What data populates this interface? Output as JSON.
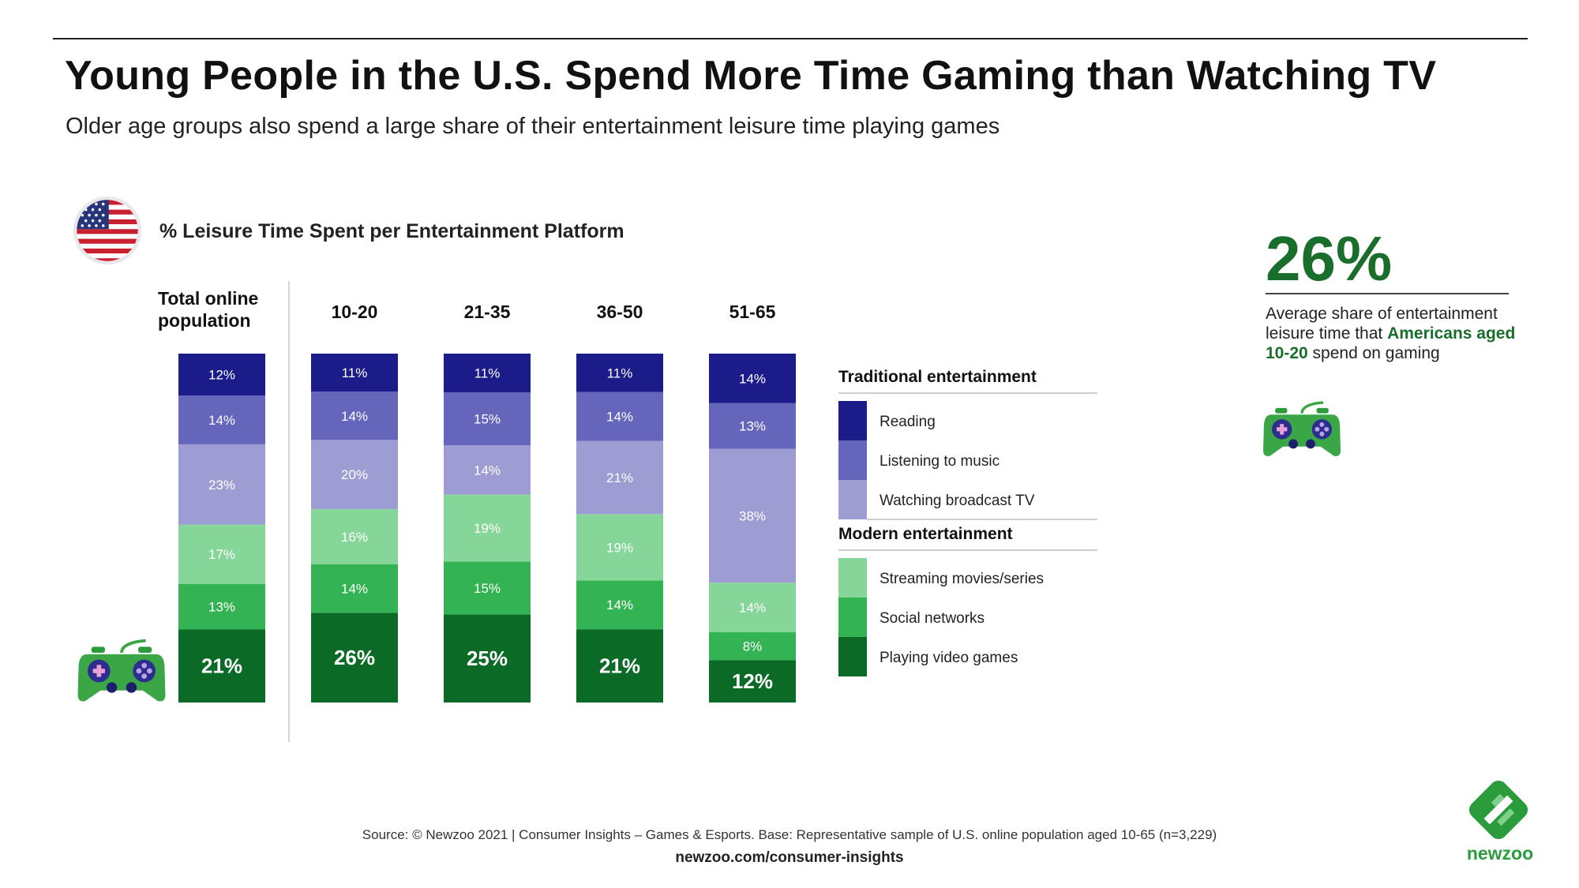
{
  "header": {
    "title": "Young People in the U.S. Spend More Time Gaming than Watching TV",
    "subtitle": "Older age groups also spend a large share of their entertainment leisure time playing games"
  },
  "chart_data": {
    "type": "bar",
    "stacked": true,
    "unit": "%",
    "title": "% Leisure Time Spent per Entertainment Platform",
    "categories": [
      "Total online population",
      "10-20",
      "21-35",
      "36-50",
      "51-65"
    ],
    "series": [
      {
        "name": "Playing video games",
        "group": "Modern entertainment",
        "color": "#0b6b26",
        "values": [
          21,
          26,
          25,
          21,
          12
        ]
      },
      {
        "name": "Social networks",
        "group": "Modern entertainment",
        "color": "#33b354",
        "values": [
          13,
          14,
          15,
          14,
          8
        ]
      },
      {
        "name": "Streaming movies/series",
        "group": "Modern entertainment",
        "color": "#86d699",
        "values": [
          17,
          16,
          19,
          19,
          14
        ]
      },
      {
        "name": "Watching broadcast TV",
        "group": "Traditional entertainment",
        "color": "#9d9dd3",
        "values": [
          23,
          20,
          14,
          21,
          38
        ]
      },
      {
        "name": "Listening to music",
        "group": "Traditional entertainment",
        "color": "#6565bb",
        "values": [
          14,
          14,
          15,
          14,
          13
        ]
      },
      {
        "name": "Reading",
        "group": "Traditional entertainment",
        "color": "#1b1b8a",
        "values": [
          12,
          11,
          11,
          11,
          14
        ]
      }
    ],
    "legend": {
      "placement": "right",
      "groups": [
        {
          "title": "Traditional entertainment",
          "items": [
            "Reading",
            "Listening to music",
            "Watching broadcast TV"
          ]
        },
        {
          "title": "Modern entertainment",
          "items": [
            "Streaming movies/series",
            "Social networks",
            "Playing video games"
          ]
        }
      ]
    }
  },
  "highlight": {
    "value": "26%",
    "description_before": "Average share of entertainment leisure time that ",
    "description_highlight": "Americans aged 10-20",
    "description_after": " spend on gaming"
  },
  "footer": {
    "source": "Source: © Newzoo 2021 | Consumer Insights – Games & Esports. Base: Representative sample of U.S. online population aged 10-65 (n=3,229)",
    "site": "newzoo.com/consumer-insights"
  },
  "brand": {
    "name": "newzoo",
    "color": "#2a9c3c"
  },
  "icons": [
    "us-flag-icon",
    "game-controller-icon",
    "newzoo-logo-icon"
  ]
}
